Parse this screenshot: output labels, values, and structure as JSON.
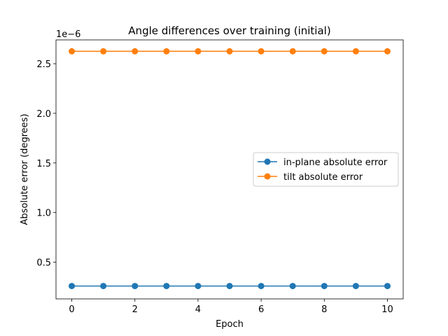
{
  "chart_data": {
    "type": "line",
    "title": "Angle differences over training (initial)",
    "xlabel": "Epoch",
    "ylabel": "Absolute error (degrees)",
    "offset_label": "1e−6",
    "x": [
      0,
      1,
      2,
      3,
      4,
      5,
      6,
      7,
      8,
      9,
      10
    ],
    "xlim": [
      -0.5,
      10.5
    ],
    "ylim": [
      1.3e-07,
      2.74e-06
    ],
    "xticks": [
      0,
      2,
      4,
      6,
      8,
      10
    ],
    "xtick_labels": [
      "0",
      "2",
      "4",
      "6",
      "8",
      "10"
    ],
    "yticks": [
      5e-07,
      1e-06,
      1.5e-06,
      2e-06,
      2.5e-06
    ],
    "ytick_labels": [
      "0.5",
      "1.0",
      "1.5",
      "2.0",
      "2.5"
    ],
    "grid": false,
    "legend_position": "center-right",
    "series": [
      {
        "name": "in-plane absolute error",
        "color": "#1f77b4",
        "marker": "circle",
        "values": [
          2.6e-07,
          2.6e-07,
          2.6e-07,
          2.6e-07,
          2.6e-07,
          2.6e-07,
          2.6e-07,
          2.6e-07,
          2.6e-07,
          2.6e-07,
          2.6e-07
        ]
      },
      {
        "name": "tilt absolute error",
        "color": "#ff7f0e",
        "marker": "circle",
        "values": [
          2.625e-06,
          2.625e-06,
          2.625e-06,
          2.625e-06,
          2.625e-06,
          2.625e-06,
          2.625e-06,
          2.625e-06,
          2.625e-06,
          2.625e-06,
          2.625e-06
        ]
      }
    ]
  }
}
